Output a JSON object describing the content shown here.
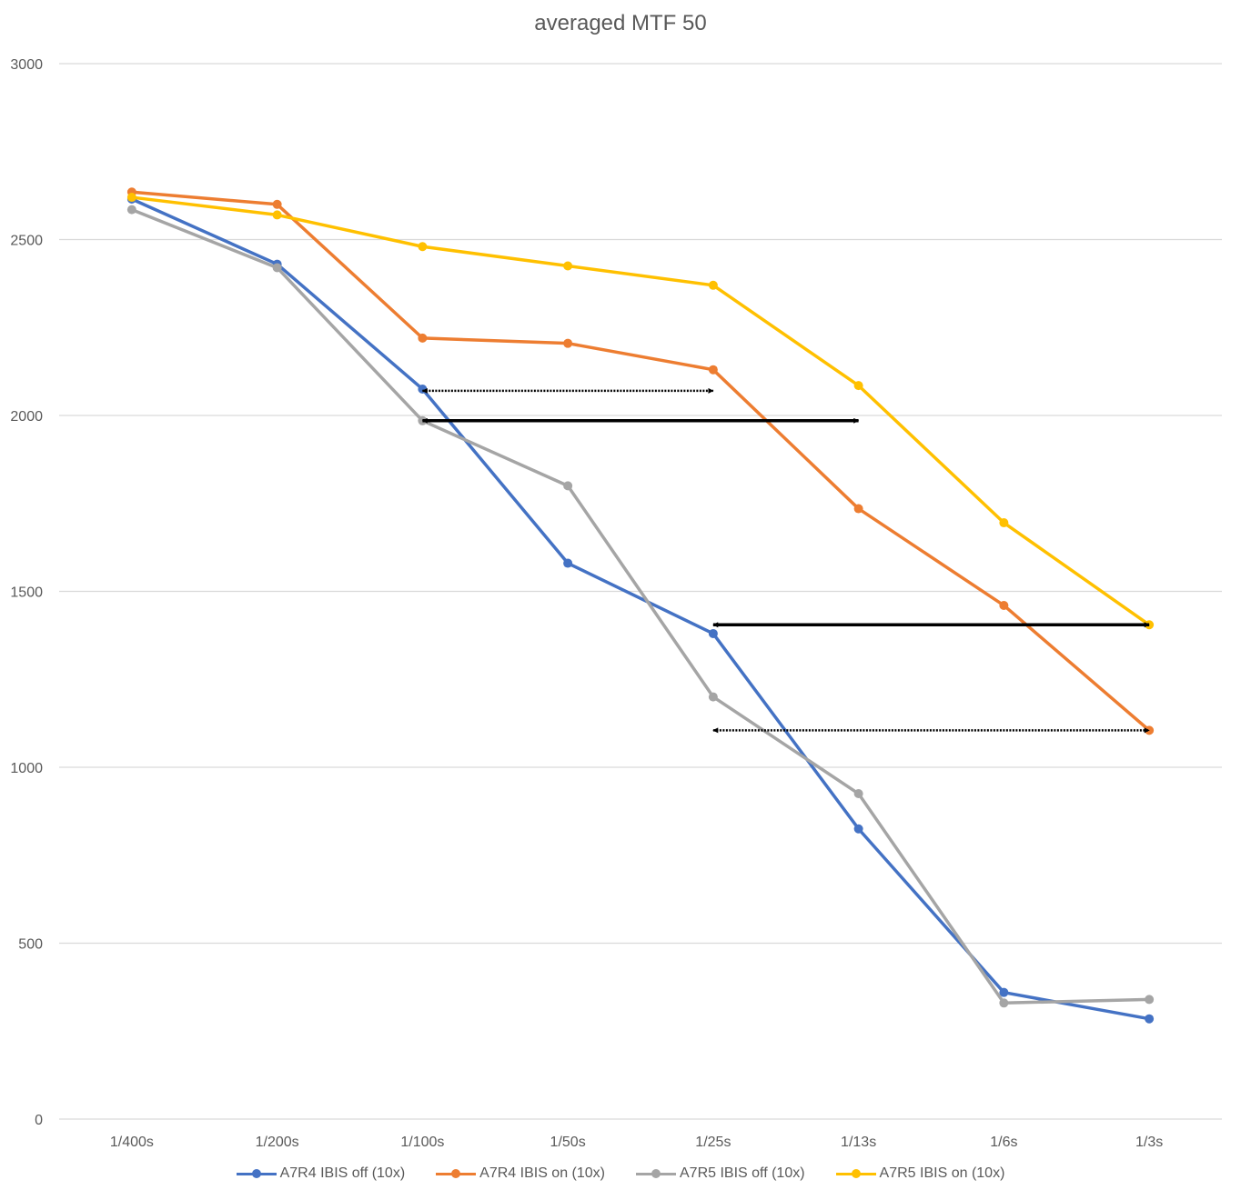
{
  "chart_data": {
    "type": "line",
    "title": "averaged MTF 50",
    "xlabel": "",
    "ylabel": "",
    "categories": [
      "1/400s",
      "1/200s",
      "1/100s",
      "1/50s",
      "1/25s",
      "1/13s",
      "1/6s",
      "1/3s"
    ],
    "ylim": [
      0,
      3000
    ],
    "yticks": [
      0,
      500,
      1000,
      1500,
      2000,
      2500,
      3000
    ],
    "grid": "horizontal",
    "legend_position": "bottom",
    "series": [
      {
        "name": "A7R4 IBIS off (10x)",
        "color": "#4472C4",
        "values": [
          2615,
          2430,
          2075,
          1580,
          1380,
          825,
          360,
          285
        ]
      },
      {
        "name": "A7R4 IBIS on (10x)",
        "color": "#ED7D31",
        "values": [
          2635,
          2600,
          2220,
          2205,
          2130,
          1735,
          1460,
          1105
        ]
      },
      {
        "name": "A7R5 IBIS off (10x)",
        "color": "#A5A5A5",
        "values": [
          2585,
          2420,
          1985,
          1800,
          1200,
          925,
          330,
          340
        ]
      },
      {
        "name": "A7R5 IBIS on (10x)",
        "color": "#FFC000",
        "values": [
          2620,
          2570,
          2480,
          2425,
          2370,
          2085,
          1695,
          1405
        ]
      }
    ],
    "annotations": [
      {
        "type": "double-arrow",
        "style": "dotted",
        "from": {
          "x": "1/100s",
          "y": 2070
        },
        "to": {
          "x": "1/25s",
          "y": 2070
        }
      },
      {
        "type": "double-arrow",
        "style": "solid",
        "from": {
          "x": "1/100s",
          "y": 1985
        },
        "to": {
          "x": "1/13s",
          "y": 1985
        }
      },
      {
        "type": "double-arrow",
        "style": "solid",
        "from": {
          "x": "1/25s",
          "y": 1405
        },
        "to": {
          "x": "1/3s",
          "y": 1405
        }
      },
      {
        "type": "double-arrow",
        "style": "dotted",
        "from": {
          "x": "1/25s",
          "y": 1105
        },
        "to": {
          "x": "1/3s",
          "y": 1105
        }
      }
    ]
  }
}
